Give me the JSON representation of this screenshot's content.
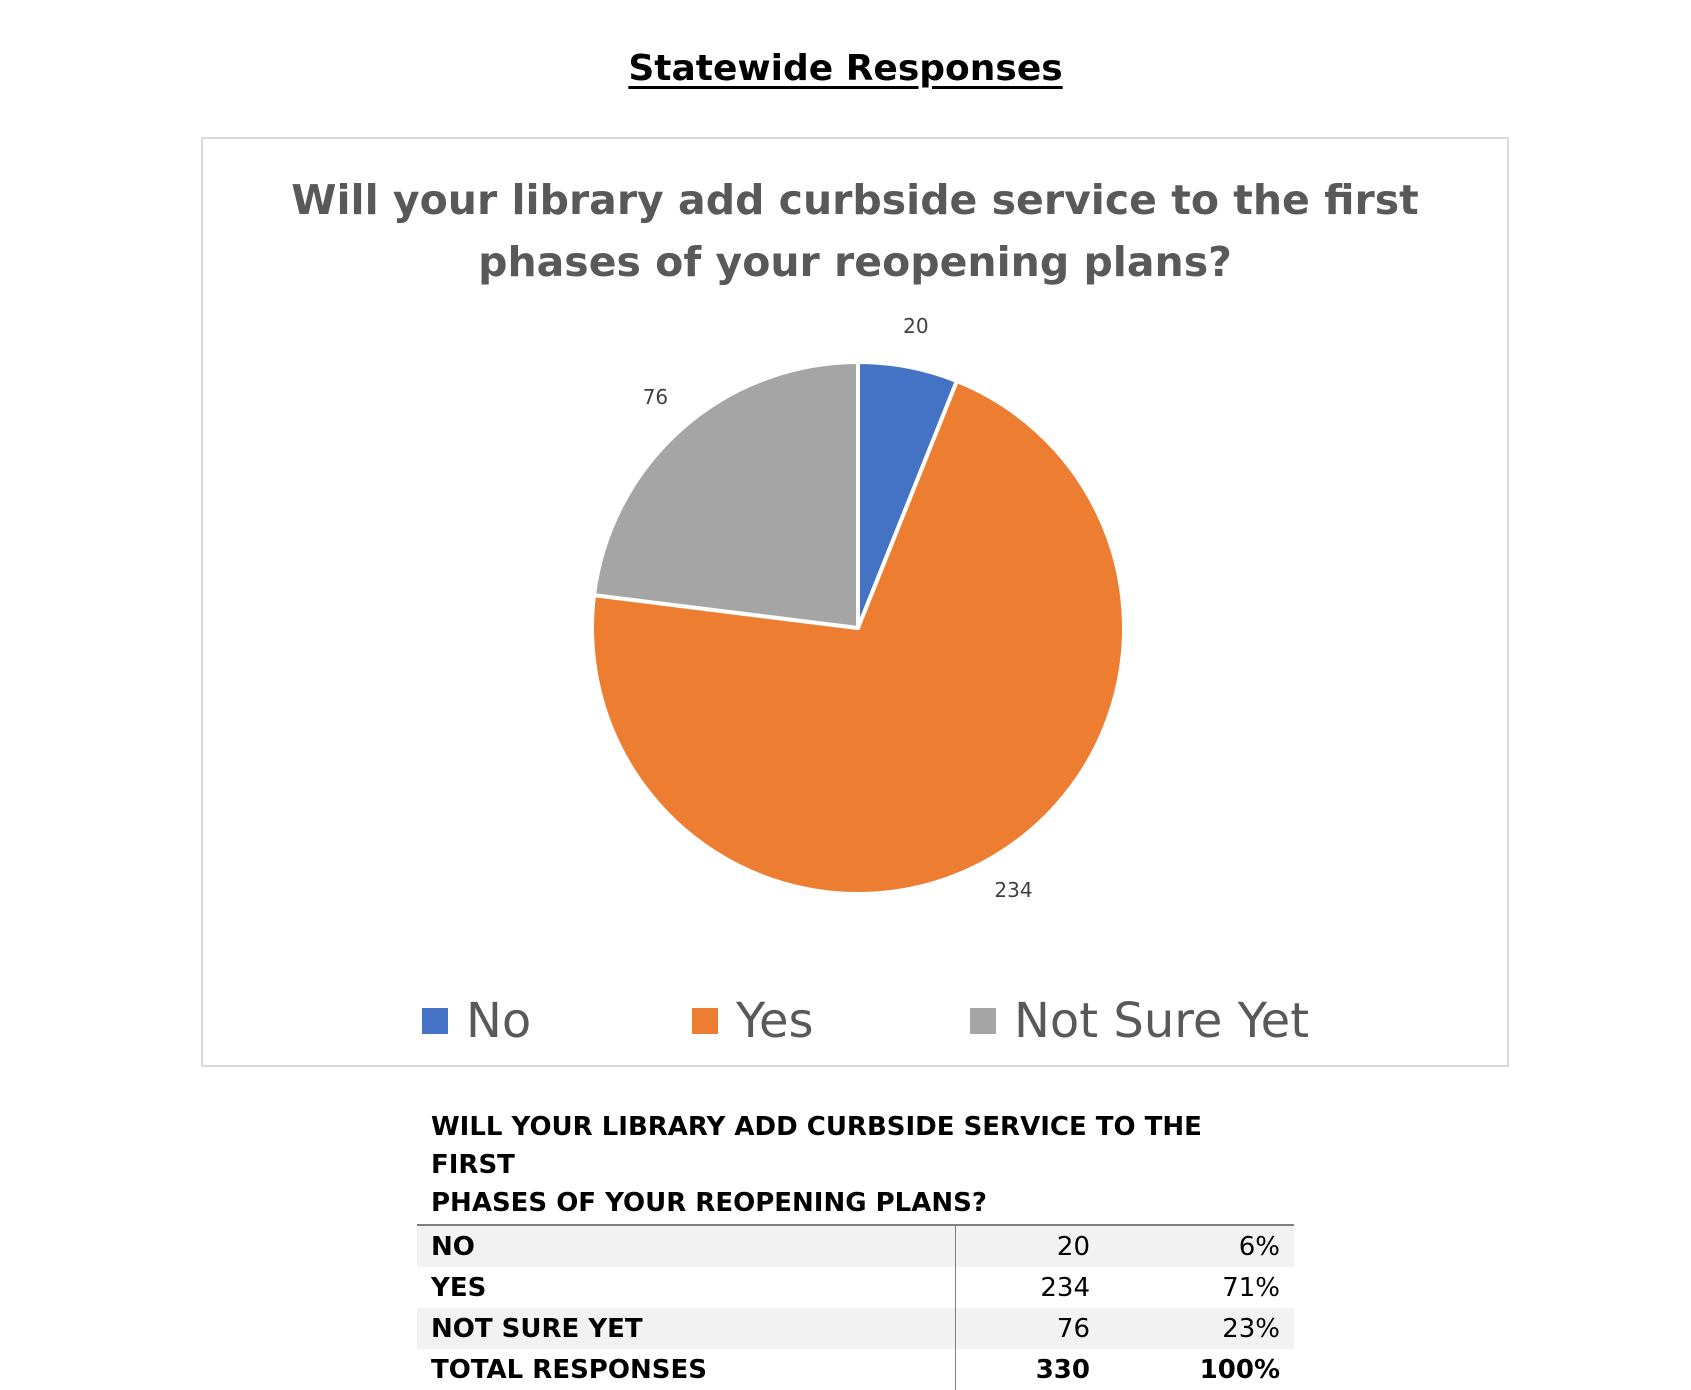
{
  "page_heading": "Statewide Responses",
  "chart_data": {
    "type": "pie",
    "title_lines": [
      "Will your library add curbside service to the first",
      "phases of your reopening plans?"
    ],
    "slices": [
      {
        "label": "No",
        "value": 20,
        "color": "#4472c4"
      },
      {
        "label": "Yes",
        "value": 234,
        "color": "#ed7d31"
      },
      {
        "label": "Not Sure Yet",
        "value": 76,
        "color": "#a5a5a5"
      }
    ],
    "data_labels": [
      "20",
      "234",
      "76"
    ],
    "legend_placement": "bottom"
  },
  "table": {
    "title_lines": [
      "WILL YOUR LIBRARY ADD CURBSIDE SERVICE TO THE FIRST",
      "PHASES OF YOUR REOPENING PLANS?"
    ],
    "rows": [
      {
        "label": "NO",
        "count": "20",
        "percent": "6%"
      },
      {
        "label": "YES",
        "count": "234",
        "percent": "71%"
      },
      {
        "label": "NOT SURE YET",
        "count": "76",
        "percent": "23%"
      },
      {
        "label": "TOTAL RESPONSES",
        "count": "330",
        "percent": "100%"
      }
    ]
  }
}
